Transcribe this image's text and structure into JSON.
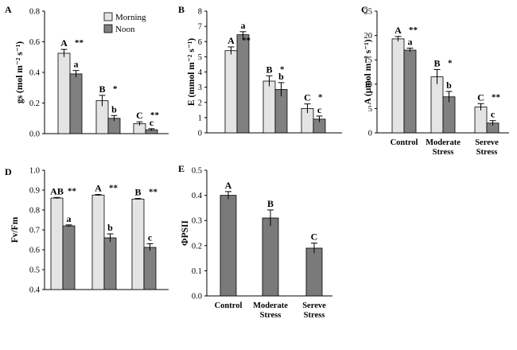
{
  "colors": {
    "morning": "#e4e4e4",
    "noon": "#808080",
    "single": "#7a7a7a",
    "edge": "#000000"
  },
  "chart_data": [
    {
      "panel": "A",
      "type": "bar",
      "ylabel": "gs (mol m⁻² s⁻¹)",
      "ylim": [
        0,
        0.8
      ],
      "yticks": [
        "0.0",
        "0.2",
        "0.4",
        "0.6",
        "0.8"
      ],
      "categories": [
        "",
        "",
        ""
      ],
      "legend": "top-right",
      "series": [
        {
          "name": "Morning",
          "values": [
            0.525,
            0.215,
            0.065
          ],
          "errors": [
            0.025,
            0.035,
            0.012
          ],
          "letters": [
            "A",
            "B",
            "C"
          ]
        },
        {
          "name": "Noon",
          "values": [
            0.39,
            0.1,
            0.025
          ],
          "errors": [
            0.022,
            0.018,
            0.007
          ],
          "letters": [
            "a",
            "b",
            "c"
          ]
        }
      ],
      "significance": [
        "**",
        "*",
        "**"
      ]
    },
    {
      "panel": "B",
      "type": "bar",
      "ylabel": "E (mmol m⁻² s⁻¹)",
      "ylim": [
        0,
        8
      ],
      "yticks": [
        "0",
        "1",
        "2",
        "3",
        "4",
        "5",
        "6",
        "7",
        "8"
      ],
      "categories": [
        "",
        "",
        ""
      ],
      "series": [
        {
          "name": "Morning",
          "values": [
            5.4,
            3.4,
            1.6
          ],
          "errors": [
            0.25,
            0.35,
            0.3
          ],
          "letters": [
            "A",
            "B",
            "C"
          ]
        },
        {
          "name": "Noon",
          "values": [
            6.45,
            2.85,
            0.9
          ],
          "errors": [
            0.2,
            0.45,
            0.2
          ],
          "letters": [
            "a",
            "b",
            "c"
          ]
        }
      ],
      "significance": [
        "**",
        "*",
        "*"
      ]
    },
    {
      "panel": "C",
      "type": "bar",
      "ylabel": "A (μmol m⁻² s⁻¹)",
      "ylim": [
        0,
        25
      ],
      "yticks": [
        "0",
        "5",
        "10",
        "15",
        "20",
        "25"
      ],
      "categories": [
        [
          "Control"
        ],
        [
          "Moderate",
          "Stress"
        ],
        [
          "Sereve",
          "Stress"
        ]
      ],
      "series": [
        {
          "name": "Morning",
          "values": [
            19.3,
            11.5,
            5.3
          ],
          "errors": [
            0.5,
            1.5,
            0.7
          ],
          "letters": [
            "A",
            "B",
            "C"
          ]
        },
        {
          "name": "Noon",
          "values": [
            17.0,
            7.4,
            2.0
          ],
          "errors": [
            0.4,
            1.1,
            0.5
          ],
          "letters": [
            "a",
            "b",
            "c"
          ]
        }
      ],
      "significance": [
        "**",
        "*",
        "**"
      ]
    },
    {
      "panel": "D",
      "type": "bar",
      "ylabel": "Fv/Fm",
      "ylim": [
        0.4,
        1.0
      ],
      "yticks": [
        "0.4",
        "0.5",
        "0.6",
        "0.7",
        "0.8",
        "0.9",
        "1.0"
      ],
      "categories": [
        "",
        "",
        ""
      ],
      "series": [
        {
          "name": "Morning",
          "values": [
            0.86,
            0.875,
            0.855
          ],
          "errors": [
            0.003,
            0.003,
            0.003
          ],
          "letters": [
            "AB",
            "A",
            "B"
          ]
        },
        {
          "name": "Noon",
          "values": [
            0.72,
            0.66,
            0.612
          ],
          "errors": [
            0.005,
            0.02,
            0.018
          ],
          "letters": [
            "a",
            "b",
            "c"
          ]
        }
      ],
      "significance": [
        "**",
        "**",
        "**"
      ]
    },
    {
      "panel": "E",
      "type": "bar",
      "ylabel": "ΦPSII",
      "ylim": [
        0,
        0.5
      ],
      "yticks": [
        "0.0",
        "0.1",
        "0.2",
        "0.3",
        "0.4",
        "0.5"
      ],
      "categories": [
        [
          "Control"
        ],
        [
          "Moderate",
          "Stress"
        ],
        [
          "Sereve",
          "Stress"
        ]
      ],
      "series": [
        {
          "name": "",
          "values": [
            0.4,
            0.31,
            0.19
          ],
          "errors": [
            0.015,
            0.032,
            0.02
          ],
          "letters": [
            "A",
            "B",
            "C"
          ]
        }
      ],
      "significance": []
    }
  ]
}
